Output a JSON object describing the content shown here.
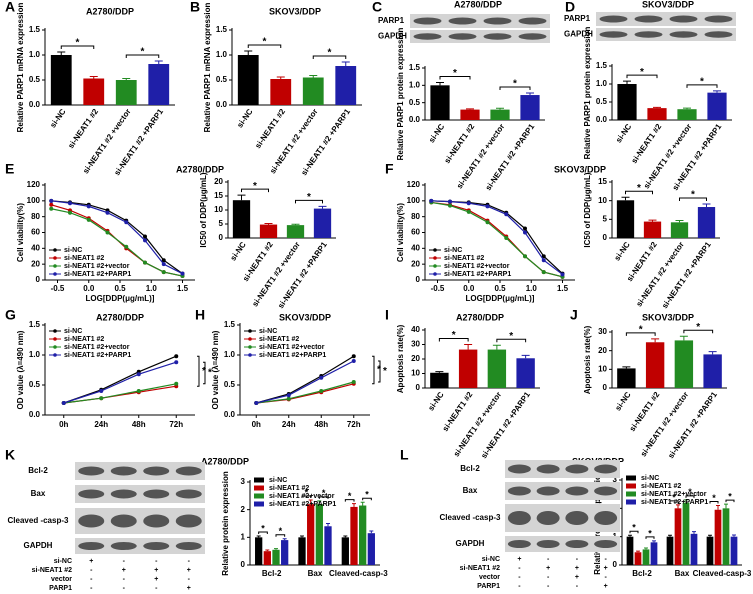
{
  "chart_data": [
    {
      "panel": "A",
      "type": "bar",
      "title": "A2780/DDP",
      "ylabel": "Relative PARP1 mRNA expression",
      "categories": [
        "si-NC",
        "si-NEAT1 #2",
        "si-NEAT1 #2 +vector",
        "si-NEAT1 #2 +PARP1"
      ],
      "values": [
        1.0,
        0.53,
        0.5,
        0.82
      ],
      "errors": [
        0.06,
        0.04,
        0.03,
        0.06
      ],
      "colors": [
        "#000000",
        "#c00000",
        "#228b22",
        "#1f1fa8"
      ],
      "ylim": [
        0,
        1.5
      ],
      "yticks": [
        {
          "value": 0,
          "label": "0.0"
        },
        0.5,
        {
          "value": 1,
          "label": "1.0"
        },
        1.5
      ],
      "annotations": [
        "*",
        "*"
      ]
    },
    {
      "panel": "B",
      "type": "bar",
      "title": "SKOV3/DDP",
      "ylabel": "Relative PARP1 mRNA expression",
      "categories": [
        "si-NC",
        "si-NEAT1 #2",
        "si-NEAT1 #2 +vector",
        "si-NEAT1 #2 +PARP1"
      ],
      "values": [
        1.0,
        0.52,
        0.55,
        0.78
      ],
      "errors": [
        0.08,
        0.04,
        0.04,
        0.08
      ],
      "colors": [
        "#000000",
        "#c00000",
        "#228b22",
        "#1f1fa8"
      ],
      "ylim": [
        0,
        1.5
      ],
      "yticks": [
        {
          "value": 0,
          "label": "0.0"
        },
        0.5,
        {
          "value": 1,
          "label": "1.0"
        },
        1.5
      ],
      "annotations": [
        "*",
        "*"
      ]
    },
    {
      "panel": "C",
      "type": "bar",
      "title": "A2780/DDP",
      "ylabel": "Relative PARP1 protein expression",
      "categories": [
        "si-NC",
        "si-NEAT1 #2",
        "si-NEAT1 #2 +vector",
        "si-NEAT1 #2 +PARP1"
      ],
      "values": [
        1.0,
        0.3,
        0.3,
        0.72
      ],
      "errors": [
        0.08,
        0.02,
        0.04,
        0.06
      ],
      "colors": [
        "#000000",
        "#c00000",
        "#228b22",
        "#1f1fa8"
      ],
      "ylim": [
        0,
        1.5
      ],
      "yticks": [
        {
          "value": 0,
          "label": "0.0"
        },
        0.5,
        {
          "value": 1,
          "label": "1.0"
        },
        1.5
      ],
      "annotations": [
        "*",
        "*"
      ]
    },
    {
      "panel": "D",
      "type": "bar",
      "title": "SKOV3/DDP",
      "ylabel": "Relative PARP1 protein expression",
      "categories": [
        "si-NC",
        "si-NEAT1 #2",
        "si-NEAT1 #2 +vector",
        "si-NEAT1 #2 +PARP1"
      ],
      "values": [
        1.0,
        0.33,
        0.3,
        0.76
      ],
      "errors": [
        0.08,
        0.02,
        0.03,
        0.05
      ],
      "colors": [
        "#000000",
        "#c00000",
        "#228b22",
        "#1f1fa8"
      ],
      "ylim": [
        0,
        1.5
      ],
      "yticks": [
        {
          "value": 0,
          "label": "0.0"
        },
        0.5,
        {
          "value": 1,
          "label": "1.0"
        },
        1.5
      ],
      "annotations": [
        "*",
        "*"
      ]
    },
    {
      "panel": "E",
      "type": "line",
      "title": "A2780/DDP",
      "ylabel": "Cell viability(%)",
      "xlabel": "LOG[DDP(μg/mL)]",
      "x": [
        -0.6,
        -0.3,
        0,
        0.3,
        0.6,
        0.9,
        1.2,
        1.5
      ],
      "xlim": [
        -0.7,
        1.7
      ],
      "xticks": [
        -0.5,
        {
          "value": 0,
          "label": "0.0"
        },
        0.5,
        {
          "value": 1,
          "label": "1.0"
        },
        1.5
      ],
      "ylim": [
        0,
        120
      ],
      "yticks": [
        0,
        20,
        40,
        60,
        80,
        100,
        120
      ],
      "legend": "lower left",
      "series": [
        {
          "name": "si-NC",
          "color": "#000000",
          "values": [
            100,
            98,
            95,
            88,
            75,
            55,
            25,
            8
          ]
        },
        {
          "name": "si-NEAT1 #2",
          "color": "#c00000",
          "values": [
            95,
            88,
            78,
            62,
            40,
            22,
            10,
            5
          ]
        },
        {
          "name": "si-NEAT1 #2+vector",
          "color": "#228b22",
          "values": [
            90,
            85,
            76,
            60,
            42,
            22,
            10,
            5
          ]
        },
        {
          "name": "si-NEAT1 #2+PARP1",
          "color": "#1f1fa8",
          "values": [
            100,
            97,
            93,
            85,
            73,
            50,
            20,
            8
          ]
        }
      ]
    },
    {
      "type": "bar",
      "ylabel": "IC50 of DDP(μg/mL)",
      "categories": [
        "si-NC",
        "si-NEAT1 #2",
        "si-NEAT1 #2 +vector",
        "si-NEAT1 #2 +PARP1"
      ],
      "values": [
        13.5,
        4.8,
        4.6,
        10.5
      ],
      "errors": [
        1.8,
        0.4,
        0.3,
        0.8
      ],
      "colors": [
        "#000000",
        "#c00000",
        "#228b22",
        "#1f1fa8"
      ],
      "ylim": [
        0,
        20
      ],
      "yticks": [
        0,
        5,
        10,
        15,
        20
      ],
      "annotations": [
        "*",
        "*"
      ]
    },
    {
      "panel": "F",
      "type": "line",
      "title": "SKOV3/DDP",
      "ylabel": "Cell viability(%)",
      "xlabel": "LOG[DDP(μg/mL)]",
      "x": [
        -0.6,
        -0.3,
        0,
        0.3,
        0.6,
        0.9,
        1.2,
        1.5
      ],
      "xlim": [
        -0.7,
        1.7
      ],
      "xticks": [
        -0.5,
        {
          "value": 0,
          "label": "0.0"
        },
        0.5,
        {
          "value": 1,
          "label": "1.0"
        },
        1.5
      ],
      "ylim": [
        0,
        120
      ],
      "yticks": [
        0,
        20,
        40,
        60,
        80,
        100,
        120
      ],
      "legend": "lower left",
      "series": [
        {
          "name": "si-NC",
          "color": "#000000",
          "values": [
            100,
            99,
            98,
            95,
            85,
            65,
            30,
            8
          ]
        },
        {
          "name": "si-NEAT1 #2",
          "color": "#c00000",
          "values": [
            98,
            95,
            88,
            75,
            55,
            30,
            10,
            4
          ]
        },
        {
          "name": "si-NEAT1 #2+vector",
          "color": "#228b22",
          "values": [
            98,
            94,
            86,
            73,
            53,
            30,
            10,
            4
          ]
        },
        {
          "name": "si-NEAT1 #2+PARP1",
          "color": "#1f1fa8",
          "values": [
            100,
            99,
            97,
            93,
            83,
            60,
            25,
            7
          ]
        }
      ]
    },
    {
      "type": "bar",
      "ylabel": "IC50 of DDP(μg/mL)",
      "categories": [
        "si-NC",
        "si-NEAT1 #2",
        "si-NEAT1 #2 +vector",
        "si-NEAT1 #2 +PARP1"
      ],
      "values": [
        10.1,
        4.4,
        4.2,
        8.3
      ],
      "errors": [
        0.8,
        0.4,
        0.5,
        0.8
      ],
      "colors": [
        "#000000",
        "#c00000",
        "#228b22",
        "#1f1fa8"
      ],
      "ylim": [
        0,
        15
      ],
      "yticks": [
        0,
        5,
        10,
        15
      ],
      "annotations": [
        "*",
        "*"
      ]
    },
    {
      "panel": "G",
      "type": "line",
      "title": "A2780/DDP",
      "ylabel": "OD value (λ=490 nm)",
      "categories": [
        "0h",
        "24h",
        "48h",
        "72h"
      ],
      "ylim": [
        0,
        1.5
      ],
      "yticks": [
        {
          "value": 0,
          "label": "0.0"
        },
        0.5,
        {
          "value": 1,
          "label": "1.0"
        },
        1.5
      ],
      "legend": "upper left",
      "annotations": [
        "*",
        "*"
      ],
      "series": [
        {
          "name": "si-NC",
          "color": "#000000",
          "values": [
            0.2,
            0.42,
            0.72,
            0.98
          ]
        },
        {
          "name": "si-NEAT1 #2",
          "color": "#c00000",
          "values": [
            0.2,
            0.28,
            0.38,
            0.48
          ]
        },
        {
          "name": "si-NEAT1 #2+vector",
          "color": "#228b22",
          "values": [
            0.2,
            0.28,
            0.4,
            0.52
          ]
        },
        {
          "name": "si-NEAT1 #2+PARP1",
          "color": "#1f1fa8",
          "values": [
            0.2,
            0.4,
            0.68,
            0.88
          ]
        }
      ]
    },
    {
      "panel": "H",
      "type": "line",
      "title": "SKOV3/DDP",
      "ylabel": "OD value (λ=490 nm)",
      "categories": [
        "0h",
        "24h",
        "48h",
        "72h"
      ],
      "ylim": [
        0,
        1.5
      ],
      "yticks": [
        {
          "value": 0,
          "label": "0.0"
        },
        0.5,
        {
          "value": 1,
          "label": "1.0"
        },
        1.5
      ],
      "legend": "upper left",
      "annotations": [
        "*",
        "*"
      ],
      "series": [
        {
          "name": "si-NC",
          "color": "#000000",
          "values": [
            0.2,
            0.35,
            0.65,
            0.98
          ]
        },
        {
          "name": "si-NEAT1 #2",
          "color": "#c00000",
          "values": [
            0.2,
            0.26,
            0.38,
            0.52
          ]
        },
        {
          "name": "si-NEAT1 #2+vector",
          "color": "#228b22",
          "values": [
            0.2,
            0.27,
            0.4,
            0.55
          ]
        },
        {
          "name": "si-NEAT1 #2+PARP1",
          "color": "#1f1fa8",
          "values": [
            0.2,
            0.33,
            0.62,
            0.9
          ]
        }
      ]
    },
    {
      "panel": "I",
      "type": "bar",
      "title": "A2780/DDP",
      "ylabel": "Apoptosis rate(%)",
      "categories": [
        "si-NC",
        "si-NEAT1 #2",
        "si-NEAT1 #2 +vector",
        "si-NEAT1 #2 +PARP1"
      ],
      "values": [
        10.5,
        26.5,
        26.5,
        20.5
      ],
      "errors": [
        0.8,
        3.5,
        3,
        2
      ],
      "colors": [
        "#000000",
        "#c00000",
        "#228b22",
        "#1f1fa8"
      ],
      "ylim": [
        0,
        40
      ],
      "yticks": [
        0,
        10,
        20,
        30,
        40
      ],
      "annotations": [
        "*",
        "*"
      ]
    },
    {
      "panel": "J",
      "type": "bar",
      "title": "SKOV3/DDP",
      "ylabel": "Apoptosis rate(%)",
      "categories": [
        "si-NC",
        "si-NEAT1 #2",
        "si-NEAT1 #2 +vector",
        "si-NEAT1 #2 +PARP1"
      ],
      "values": [
        10.5,
        24.5,
        25.5,
        18
      ],
      "errors": [
        0.8,
        1.8,
        2.2,
        1.5
      ],
      "colors": [
        "#000000",
        "#c00000",
        "#228b22",
        "#1f1fa8"
      ],
      "ylim": [
        0,
        30
      ],
      "yticks": [
        0,
        10,
        20,
        30
      ],
      "annotations": [
        "*",
        "*"
      ]
    },
    {
      "panel": "K",
      "type": "grouped_bar",
      "title": "A2780/DDP",
      "ylabel": "Relative protein expression",
      "categories": [
        "Bcl-2",
        "Bax",
        "Cleaved-casp-3"
      ],
      "ylim": [
        0,
        3
      ],
      "yticks": [
        0,
        1,
        2,
        3
      ],
      "legend": "upper left",
      "annotations": [
        "*",
        "*",
        "*",
        "*",
        "*",
        "*"
      ],
      "series": [
        {
          "name": "si-NC",
          "color": "#000000",
          "values": [
            1.0,
            1.0,
            1.0
          ],
          "errors": [
            0.05,
            0.05,
            0.05
          ]
        },
        {
          "name": "si-NEAT1 #2",
          "color": "#c00000",
          "values": [
            0.5,
            2.2,
            2.1
          ],
          "errors": [
            0.04,
            0.15,
            0.12
          ]
        },
        {
          "name": "si-NEAT1 #2+vector",
          "color": "#228b22",
          "values": [
            0.55,
            2.2,
            2.15
          ],
          "errors": [
            0.04,
            0.12,
            0.12
          ]
        },
        {
          "name": "si-NEAT1 #2+PARP1",
          "color": "#1f1fa8",
          "values": [
            0.9,
            1.4,
            1.15
          ],
          "errors": [
            0.05,
            0.1,
            0.08
          ]
        }
      ]
    },
    {
      "panel": "L",
      "type": "grouped_bar",
      "title": "SKOV3/DDP",
      "ylabel": "Relative protein expression",
      "categories": [
        "Bcl-2",
        "Bax",
        "Cleaved-casp-3"
      ],
      "ylim": [
        0,
        3
      ],
      "yticks": [
        0,
        1,
        2,
        3
      ],
      "legend": "upper left",
      "annotations": [
        "*",
        "*",
        "*",
        "*",
        "*",
        "*"
      ],
      "series": [
        {
          "name": "si-NC",
          "color": "#000000",
          "values": [
            1.0,
            1.0,
            1.0
          ],
          "errors": [
            0.05,
            0.05,
            0.05
          ]
        },
        {
          "name": "si-NEAT1 #2",
          "color": "#c00000",
          "values": [
            0.45,
            2.0,
            1.95
          ],
          "errors": [
            0.04,
            0.12,
            0.15
          ]
        },
        {
          "name": "si-NEAT1 #2+vector",
          "color": "#228b22",
          "values": [
            0.55,
            2.2,
            2.0
          ],
          "errors": [
            0.05,
            0.1,
            0.15
          ]
        },
        {
          "name": "si-NEAT1 #2+PARP1",
          "color": "#1f1fa8",
          "values": [
            0.8,
            1.1,
            1.0
          ],
          "errors": [
            0.05,
            0.08,
            0.06
          ]
        }
      ]
    }
  ],
  "blots": [
    {
      "labels": [
        "PARP1",
        "GAPDH"
      ]
    },
    {
      "labels": [
        "PARP1",
        "GAPDH"
      ]
    },
    {
      "labels": [
        "Bcl-2",
        "Bax",
        "Cleaved -casp-3",
        "GAPDH"
      ],
      "lanes": [
        {
          "label": "si-NC",
          "marks": [
            "+",
            "-",
            "-",
            "-"
          ]
        },
        {
          "label": "si-NEAT1 #2",
          "marks": [
            "-",
            "+",
            "+",
            "+"
          ]
        },
        {
          "label": "vector",
          "marks": [
            "-",
            "-",
            "+",
            "-"
          ]
        },
        {
          "label": "PARP1",
          "marks": [
            "-",
            "-",
            "-",
            "+"
          ]
        }
      ]
    },
    {
      "labels": [
        "Bcl-2",
        "Bax",
        "Cleaved -casp-3",
        "GAPDH"
      ],
      "lanes": [
        {
          "label": "si-NC",
          "marks": [
            "+",
            "-",
            "-",
            "-"
          ]
        },
        {
          "label": "si-NEAT1 #2",
          "marks": [
            "-",
            "+",
            "+",
            "+"
          ]
        },
        {
          "label": "vector",
          "marks": [
            "-",
            "-",
            "+",
            "-"
          ]
        },
        {
          "label": "PARP1",
          "marks": [
            "-",
            "-",
            "-",
            "+"
          ]
        }
      ]
    }
  ]
}
